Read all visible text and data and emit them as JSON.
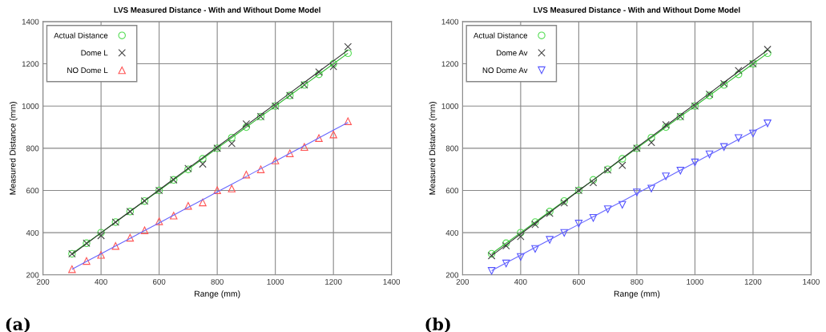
{
  "chart_data": [
    {
      "type": "scatter",
      "title": "LVS Measured Distance - With and Without Dome Model",
      "xlabel": "Range (mm)",
      "ylabel": "Measured Distance (mm)",
      "annotations": [
        "(a)"
      ],
      "x": [
        300,
        350,
        400,
        450,
        500,
        550,
        600,
        650,
        700,
        750,
        800,
        850,
        900,
        950,
        1000,
        1050,
        1100,
        1150,
        1200,
        1250
      ],
      "series": [
        {
          "name": "Actual Distance",
          "color": "#55dd55",
          "marker": "circle",
          "values": [
            300,
            350,
            400,
            450,
            500,
            550,
            600,
            650,
            700,
            750,
            800,
            850,
            900,
            950,
            1000,
            1050,
            1100,
            1150,
            1200,
            1250
          ]
        },
        {
          "name": "Dome L",
          "color": "#444444",
          "marker": "cross",
          "values": [
            300,
            350,
            386,
            450,
            500,
            550,
            600,
            650,
            704,
            725,
            800,
            822,
            915,
            950,
            1000,
            1050,
            1100,
            1161,
            1187,
            1281
          ]
        },
        {
          "name": "NO Dome L",
          "color": "#ff5555",
          "marker": "triangle",
          "values": [
            227,
            266,
            295,
            337,
            376,
            411,
            454,
            481,
            527,
            543,
            601,
            609,
            675,
            700,
            742,
            776,
            806,
            848,
            865,
            928
          ]
        },
        {
          "type": "line",
          "color": "#33bb33",
          "marker": "none",
          "values": [
            300,
            350,
            400,
            450,
            500,
            550,
            600,
            650,
            700,
            750,
            800,
            850,
            900,
            950,
            1000,
            1050,
            1100,
            1150,
            1200,
            1250
          ]
        },
        {
          "type": "line",
          "color": "#333333",
          "marker": "none",
          "values": [
            297,
            348,
            399,
            450,
            501,
            552,
            603,
            654,
            705,
            755,
            806,
            857,
            908,
            959,
            1010,
            1061,
            1112,
            1163,
            1214,
            1265
          ]
        },
        {
          "type": "line",
          "color": "#6666ff",
          "marker": "none",
          "values": [
            227,
            264,
            300,
            337,
            373,
            410,
            446,
            483,
            520,
            556,
            593,
            629,
            666,
            703,
            739,
            776,
            812,
            849,
            886,
            922
          ]
        }
      ],
      "xlim": [
        200,
        1400
      ],
      "ylim": [
        200,
        1400
      ],
      "xticks": [
        200,
        400,
        600,
        800,
        1000,
        1200,
        1400
      ],
      "yticks": [
        200,
        400,
        600,
        800,
        1000,
        1200,
        1400
      ],
      "grid": true,
      "legend": "top left"
    },
    {
      "type": "scatter",
      "title": "LVS Measured Distance - With and Without Dome Model",
      "xlabel": "Range (mm)",
      "ylabel": "Measured Distance (mm)",
      "annotations": [
        "(b)"
      ],
      "x": [
        300,
        350,
        400,
        450,
        500,
        550,
        600,
        650,
        700,
        750,
        800,
        850,
        900,
        950,
        1000,
        1050,
        1100,
        1150,
        1200,
        1250
      ],
      "series": [
        {
          "name": "Actual Distance",
          "color": "#55dd55",
          "marker": "circle",
          "values": [
            300,
            350,
            400,
            450,
            500,
            550,
            600,
            650,
            700,
            750,
            800,
            850,
            900,
            950,
            1000,
            1050,
            1100,
            1150,
            1200,
            1250
          ]
        },
        {
          "name": "Dome Av",
          "color": "#444444",
          "marker": "cross",
          "values": [
            291,
            338,
            382,
            439,
            492,
            541,
            600,
            637,
            697,
            719,
            800,
            827,
            911,
            950,
            1000,
            1056,
            1106,
            1168,
            1200,
            1268
          ]
        },
        {
          "name": "NO Dome Av",
          "color": "#5555ff",
          "marker": "triangle_down",
          "values": [
            219,
            254,
            285,
            323,
            366,
            399,
            443,
            470,
            511,
            532,
            591,
            609,
            667,
            694,
            733,
            771,
            806,
            848,
            870,
            918
          ]
        },
        {
          "type": "line",
          "color": "#33bb33",
          "marker": "none",
          "values": [
            300,
            350,
            400,
            450,
            500,
            550,
            600,
            650,
            700,
            750,
            800,
            850,
            900,
            950,
            1000,
            1050,
            1100,
            1150,
            1200,
            1250
          ]
        },
        {
          "type": "line",
          "color": "#333333",
          "marker": "none",
          "values": [
            291,
            342,
            394,
            445,
            496,
            547,
            599,
            650,
            701,
            753,
            804,
            855,
            906,
            958,
            1009,
            1060,
            1112,
            1163,
            1214,
            1265
          ]
        },
        {
          "type": "line",
          "color": "#6666ff",
          "marker": "none",
          "values": [
            220,
            257,
            293,
            330,
            366,
            403,
            439,
            476,
            513,
            549,
            586,
            622,
            659,
            696,
            732,
            769,
            805,
            842,
            879,
            915
          ]
        }
      ],
      "xlim": [
        200,
        1400
      ],
      "ylim": [
        200,
        1400
      ],
      "xticks": [
        200,
        400,
        600,
        800,
        1000,
        1200,
        1400
      ],
      "yticks": [
        200,
        400,
        600,
        800,
        1000,
        1200,
        1400
      ],
      "grid": true,
      "legend": "top left"
    }
  ]
}
